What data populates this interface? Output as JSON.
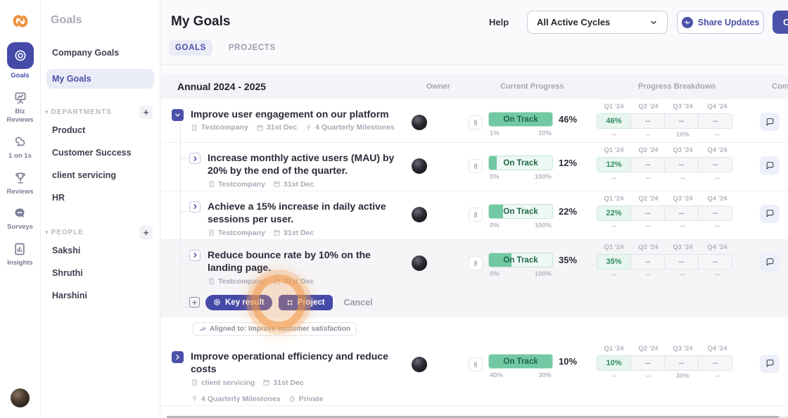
{
  "rail": {
    "items": [
      {
        "label": "Goals",
        "icon": "target-icon",
        "active": true
      },
      {
        "label": "Biz Reviews",
        "icon": "presentation-icon",
        "active": false
      },
      {
        "label": "1 on 1s",
        "icon": "chat-duo-icon",
        "active": false
      },
      {
        "label": "Reviews",
        "icon": "trophy-icon",
        "active": false
      },
      {
        "label": "Surveys",
        "icon": "speech-bubble-icon",
        "active": false
      },
      {
        "label": "Insights",
        "icon": "bar-chart-icon",
        "active": false
      }
    ]
  },
  "sidebar": {
    "title": "Goals",
    "company_goals": "Company Goals",
    "my_goals": "My Goals",
    "sections": [
      {
        "label": "DEPARTMENTS",
        "items": [
          "Product",
          "Customer Success",
          "client servicing",
          "HR"
        ]
      },
      {
        "label": "PEOPLE",
        "items": [
          "Sakshi",
          "Shruthi",
          "Harshini"
        ]
      }
    ]
  },
  "topbar": {
    "title": "My Goals",
    "tabs": [
      {
        "label": "GOALS",
        "active": true
      },
      {
        "label": "PROJECTS",
        "active": false
      }
    ],
    "help": "Help",
    "cycle_dropdown": "All Active Cycles",
    "share_button": "Share Updates",
    "create_button": "C"
  },
  "table": {
    "group_title": "Annual 2024 - 2025",
    "columns": {
      "owner": "Owner",
      "current_progress": "Current Progress",
      "progress_breakdown": "Progress Breakdown",
      "comments": "Com"
    },
    "quarters": [
      "Q1 '24",
      "Q2 '24",
      "Q3 '24",
      "Q4 '24"
    ],
    "rows": [
      {
        "title": "Improve user engagement on our platform",
        "company": "Testcompany",
        "due": "31st Dec",
        "milestones": "4 Quarterly Milestones",
        "status": "On Track",
        "progress": "46%",
        "fill": 100,
        "range_start": "1%",
        "range_end": "10%",
        "q": [
          {
            "v": "46%",
            "sub": "--"
          },
          {
            "v": "--",
            "sub": "--"
          },
          {
            "v": "--",
            "sub": "10%"
          },
          {
            "v": "--",
            "sub": "--"
          }
        ]
      },
      {
        "title": "Increase monthly active users (MAU) by 20% by the end of the quarter.",
        "company": "Testcompany",
        "due": "31st Dec",
        "status": "On Track",
        "progress": "12%",
        "fill": 12,
        "range_start": "0%",
        "range_end": "100%",
        "q": [
          {
            "v": "12%",
            "sub": "--"
          },
          {
            "v": "--",
            "sub": "--"
          },
          {
            "v": "--",
            "sub": "--"
          },
          {
            "v": "--",
            "sub": "--"
          }
        ]
      },
      {
        "title": "Achieve a 15% increase in daily active sessions per user.",
        "company": "Testcompany",
        "due": "31st Dec",
        "status": "On Track",
        "progress": "22%",
        "fill": 22,
        "range_start": "0%",
        "range_end": "100%",
        "q": [
          {
            "v": "22%",
            "sub": "--"
          },
          {
            "v": "--",
            "sub": "--"
          },
          {
            "v": "--",
            "sub": "--"
          },
          {
            "v": "--",
            "sub": "--"
          }
        ]
      },
      {
        "title": "Reduce bounce rate by 10% on the landing page.",
        "company": "Testcompany",
        "due": "31st Dec",
        "status": "On Track",
        "progress": "35%",
        "fill": 35,
        "range_start": "0%",
        "range_end": "100%",
        "q": [
          {
            "v": "35%",
            "sub": "--"
          },
          {
            "v": "--",
            "sub": "--"
          },
          {
            "v": "--",
            "sub": "--"
          },
          {
            "v": "--",
            "sub": "--"
          }
        ]
      },
      {
        "title": "Improve operational efficiency and reduce costs",
        "company": "client servicing",
        "due": "31st Dec",
        "milestones": "4 Quarterly Milestones",
        "privacy": "Private",
        "status": "On Track",
        "progress": "10%",
        "fill": 100,
        "range_start": "40%",
        "range_end": "30%",
        "q": [
          {
            "v": "10%",
            "sub": "--"
          },
          {
            "v": "--",
            "sub": "--"
          },
          {
            "v": "--",
            "sub": "30%"
          },
          {
            "v": "--",
            "sub": "--"
          }
        ]
      }
    ]
  },
  "action_bar": {
    "key_result": "Key result",
    "project": "Project",
    "cancel": "Cancel"
  },
  "aligned_tag": "Aligned to: Improve customer satisfaction",
  "colors": {
    "accent": "#4b50a8",
    "green": "#72c8a3",
    "mint": "#e9f6f0",
    "orange": "#f0923f"
  }
}
